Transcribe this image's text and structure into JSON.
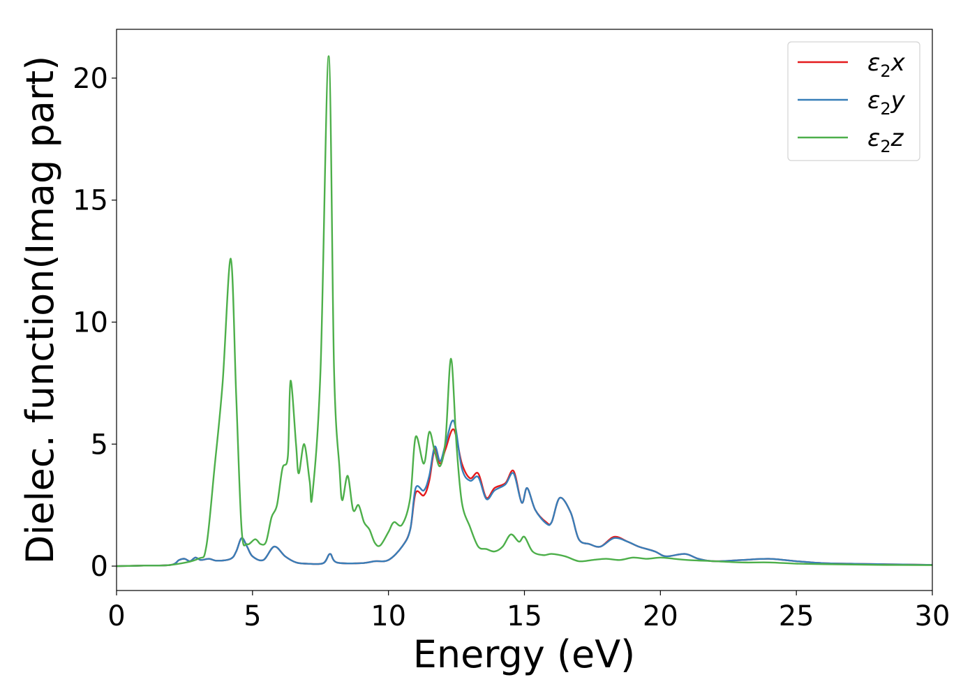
{
  "chart_data": {
    "type": "line",
    "title": "",
    "xlabel": "Energy (eV)",
    "ylabel": "Dielec. function(Imag part)",
    "xlim": [
      0,
      30
    ],
    "ylim": [
      -1,
      22
    ],
    "xticks": [
      0,
      5,
      10,
      15,
      20,
      25,
      30
    ],
    "yticks": [
      0,
      5,
      10,
      15,
      20
    ],
    "xtick_labels": [
      "0",
      "5",
      "10",
      "15",
      "20",
      "25",
      "30"
    ],
    "ytick_labels": [
      "0",
      "5",
      "10",
      "15",
      "20"
    ],
    "grid": false,
    "legend_position": "top-right",
    "series": [
      {
        "name_base": "ε",
        "name_sub": "2",
        "name_suffix": "x",
        "color": "#e41a1c",
        "points": [
          [
            0,
            0
          ],
          [
            1,
            0.02
          ],
          [
            2,
            0.05
          ],
          [
            2.3,
            0.25
          ],
          [
            2.5,
            0.3
          ],
          [
            2.7,
            0.2
          ],
          [
            2.9,
            0.35
          ],
          [
            3.1,
            0.25
          ],
          [
            3.4,
            0.3
          ],
          [
            3.7,
            0.22
          ],
          [
            4.2,
            0.3
          ],
          [
            4.4,
            0.6
          ],
          [
            4.6,
            1.15
          ],
          [
            4.8,
            0.8
          ],
          [
            5.0,
            0.4
          ],
          [
            5.4,
            0.25
          ],
          [
            5.8,
            0.8
          ],
          [
            6.2,
            0.4
          ],
          [
            6.6,
            0.15
          ],
          [
            7.0,
            0.1
          ],
          [
            7.6,
            0.12
          ],
          [
            7.85,
            0.5
          ],
          [
            8.1,
            0.15
          ],
          [
            9.0,
            0.12
          ],
          [
            9.5,
            0.2
          ],
          [
            10.0,
            0.25
          ],
          [
            10.5,
            0.8
          ],
          [
            10.8,
            1.5
          ],
          [
            11.0,
            3.0
          ],
          [
            11.3,
            2.9
          ],
          [
            11.5,
            3.5
          ],
          [
            11.7,
            4.8
          ],
          [
            11.9,
            4.2
          ],
          [
            12.1,
            4.8
          ],
          [
            12.4,
            5.6
          ],
          [
            12.7,
            4.2
          ],
          [
            13.0,
            3.6
          ],
          [
            13.3,
            3.8
          ],
          [
            13.6,
            2.8
          ],
          [
            13.9,
            3.2
          ],
          [
            14.3,
            3.4
          ],
          [
            14.6,
            3.9
          ],
          [
            14.9,
            2.6
          ],
          [
            15.1,
            3.2
          ],
          [
            15.4,
            2.3
          ],
          [
            15.8,
            1.8
          ],
          [
            16.0,
            1.8
          ],
          [
            16.3,
            2.8
          ],
          [
            16.7,
            2.2
          ],
          [
            17.0,
            1.1
          ],
          [
            17.4,
            0.9
          ],
          [
            17.8,
            0.8
          ],
          [
            18.3,
            1.2
          ],
          [
            18.8,
            1.0
          ],
          [
            19.2,
            0.8
          ],
          [
            19.8,
            0.6
          ],
          [
            20.2,
            0.4
          ],
          [
            20.9,
            0.5
          ],
          [
            21.4,
            0.3
          ],
          [
            22.0,
            0.2
          ],
          [
            23.0,
            0.25
          ],
          [
            24.0,
            0.3
          ],
          [
            25.0,
            0.2
          ],
          [
            26.0,
            0.12
          ],
          [
            27.0,
            0.1
          ],
          [
            28.0,
            0.08
          ],
          [
            30.0,
            0.05
          ]
        ]
      },
      {
        "name_base": "ε",
        "name_sub": "2",
        "name_suffix": "y",
        "color": "#377eb8",
        "points": [
          [
            0,
            0
          ],
          [
            1,
            0.02
          ],
          [
            2,
            0.05
          ],
          [
            2.3,
            0.25
          ],
          [
            2.5,
            0.3
          ],
          [
            2.7,
            0.2
          ],
          [
            2.9,
            0.35
          ],
          [
            3.1,
            0.25
          ],
          [
            3.4,
            0.3
          ],
          [
            3.7,
            0.22
          ],
          [
            4.2,
            0.3
          ],
          [
            4.4,
            0.6
          ],
          [
            4.6,
            1.15
          ],
          [
            4.8,
            0.8
          ],
          [
            5.0,
            0.4
          ],
          [
            5.4,
            0.25
          ],
          [
            5.8,
            0.8
          ],
          [
            6.2,
            0.4
          ],
          [
            6.6,
            0.15
          ],
          [
            7.0,
            0.1
          ],
          [
            7.6,
            0.12
          ],
          [
            7.85,
            0.5
          ],
          [
            8.1,
            0.15
          ],
          [
            9.0,
            0.12
          ],
          [
            9.5,
            0.2
          ],
          [
            10.0,
            0.25
          ],
          [
            10.5,
            0.8
          ],
          [
            10.8,
            1.5
          ],
          [
            11.0,
            3.2
          ],
          [
            11.3,
            3.1
          ],
          [
            11.5,
            3.7
          ],
          [
            11.7,
            4.9
          ],
          [
            11.9,
            4.3
          ],
          [
            12.1,
            5.0
          ],
          [
            12.4,
            5.95
          ],
          [
            12.7,
            4.0
          ],
          [
            13.0,
            3.5
          ],
          [
            13.3,
            3.65
          ],
          [
            13.6,
            2.75
          ],
          [
            13.9,
            3.1
          ],
          [
            14.3,
            3.35
          ],
          [
            14.6,
            3.8
          ],
          [
            14.9,
            2.6
          ],
          [
            15.1,
            3.2
          ],
          [
            15.4,
            2.3
          ],
          [
            15.8,
            1.75
          ],
          [
            16.0,
            1.8
          ],
          [
            16.3,
            2.8
          ],
          [
            16.7,
            2.2
          ],
          [
            17.0,
            1.1
          ],
          [
            17.4,
            0.9
          ],
          [
            17.8,
            0.8
          ],
          [
            18.3,
            1.15
          ],
          [
            18.8,
            1.0
          ],
          [
            19.2,
            0.8
          ],
          [
            19.8,
            0.6
          ],
          [
            20.2,
            0.4
          ],
          [
            20.9,
            0.5
          ],
          [
            21.4,
            0.3
          ],
          [
            22.0,
            0.2
          ],
          [
            23.0,
            0.25
          ],
          [
            24.0,
            0.3
          ],
          [
            25.0,
            0.2
          ],
          [
            26.0,
            0.12
          ],
          [
            27.0,
            0.1
          ],
          [
            28.0,
            0.08
          ],
          [
            30.0,
            0.05
          ]
        ]
      },
      {
        "name_base": "ε",
        "name_sub": "2",
        "name_suffix": "z",
        "color": "#4daf4a",
        "points": [
          [
            0,
            0
          ],
          [
            1,
            0.02
          ],
          [
            2,
            0.05
          ],
          [
            3.0,
            0.3
          ],
          [
            3.3,
            0.8
          ],
          [
            3.6,
            4.0
          ],
          [
            3.9,
            7.5
          ],
          [
            4.2,
            12.6
          ],
          [
            4.4,
            7.0
          ],
          [
            4.6,
            1.5
          ],
          [
            4.8,
            0.9
          ],
          [
            5.1,
            1.1
          ],
          [
            5.3,
            0.9
          ],
          [
            5.5,
            1.0
          ],
          [
            5.7,
            2.0
          ],
          [
            5.9,
            2.5
          ],
          [
            6.1,
            4.0
          ],
          [
            6.3,
            4.5
          ],
          [
            6.4,
            7.6
          ],
          [
            6.6,
            5.0
          ],
          [
            6.7,
            3.8
          ],
          [
            6.9,
            5.0
          ],
          [
            7.1,
            3.5
          ],
          [
            7.2,
            2.9
          ],
          [
            7.5,
            8.0
          ],
          [
            7.8,
            20.9
          ],
          [
            8.0,
            8.0
          ],
          [
            8.2,
            4.0
          ],
          [
            8.3,
            2.7
          ],
          [
            8.5,
            3.7
          ],
          [
            8.7,
            2.3
          ],
          [
            8.9,
            2.5
          ],
          [
            9.1,
            1.8
          ],
          [
            9.3,
            1.5
          ],
          [
            9.5,
            0.95
          ],
          [
            9.7,
            0.85
          ],
          [
            10.0,
            1.4
          ],
          [
            10.2,
            1.8
          ],
          [
            10.5,
            1.7
          ],
          [
            10.8,
            2.8
          ],
          [
            11.0,
            5.3
          ],
          [
            11.3,
            4.2
          ],
          [
            11.5,
            5.5
          ],
          [
            11.7,
            4.7
          ],
          [
            11.9,
            4.1
          ],
          [
            12.1,
            5.2
          ],
          [
            12.3,
            8.5
          ],
          [
            12.5,
            5.0
          ],
          [
            12.7,
            2.6
          ],
          [
            13.0,
            1.6
          ],
          [
            13.3,
            0.8
          ],
          [
            13.6,
            0.7
          ],
          [
            13.9,
            0.6
          ],
          [
            14.2,
            0.8
          ],
          [
            14.5,
            1.3
          ],
          [
            14.8,
            1.0
          ],
          [
            15.0,
            1.2
          ],
          [
            15.3,
            0.6
          ],
          [
            15.7,
            0.45
          ],
          [
            16.0,
            0.5
          ],
          [
            16.5,
            0.4
          ],
          [
            17.0,
            0.2
          ],
          [
            17.5,
            0.25
          ],
          [
            18.0,
            0.3
          ],
          [
            18.5,
            0.25
          ],
          [
            19.0,
            0.35
          ],
          [
            19.5,
            0.3
          ],
          [
            20.0,
            0.35
          ],
          [
            20.5,
            0.3
          ],
          [
            21.0,
            0.25
          ],
          [
            22.0,
            0.2
          ],
          [
            23.0,
            0.15
          ],
          [
            24.0,
            0.15
          ],
          [
            25.0,
            0.1
          ],
          [
            26.0,
            0.08
          ],
          [
            28.0,
            0.05
          ],
          [
            30.0,
            0.04
          ]
        ]
      }
    ]
  }
}
